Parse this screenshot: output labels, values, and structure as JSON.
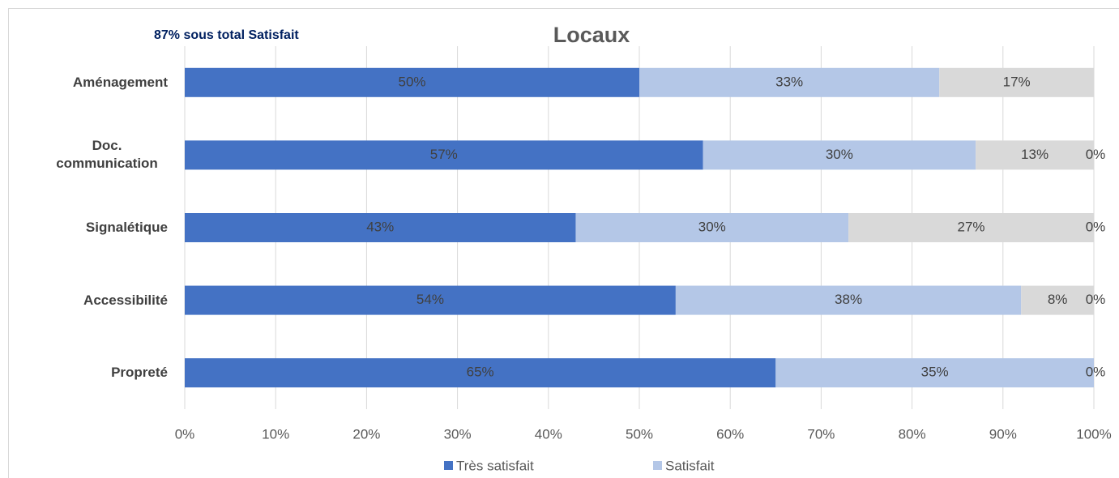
{
  "chart_data": {
    "type": "stacked_bar_horizontal",
    "title": "Locaux",
    "annotation": "87% sous total Satisfait",
    "categories": [
      "Aménagement",
      "Doc. communication",
      "Signalétique",
      "Accessibilité",
      "Propreté"
    ],
    "series": [
      {
        "name": "Très satisfait",
        "color": "#4472c4",
        "values": [
          50,
          57,
          43,
          54,
          65
        ],
        "value_labels": [
          "50%",
          "57%",
          "43%",
          "54%",
          "65%"
        ]
      },
      {
        "name": "Satisfait",
        "color": "#b4c7e7",
        "values": [
          33,
          30,
          30,
          38,
          35
        ],
        "value_labels": [
          "33%",
          "30%",
          "30%",
          "38%",
          "35%"
        ]
      },
      {
        "color": "#d9d9d9",
        "values": [
          17,
          13,
          27,
          8,
          null
        ],
        "value_labels": [
          "17%",
          "13%",
          "27%",
          "8%",
          null
        ]
      },
      {
        "color": "#7f7f7f",
        "values": [
          null,
          0,
          0,
          0,
          0
        ],
        "value_labels": [
          null,
          "0%",
          "0%",
          "0%",
          "0%"
        ]
      }
    ],
    "xlim": [
      0,
      100
    ],
    "xticks": [
      {
        "value": 0,
        "label": "0%"
      },
      {
        "value": 10,
        "label": "10%"
      },
      {
        "value": 20,
        "label": "20%"
      },
      {
        "value": 30,
        "label": "30%"
      },
      {
        "value": 40,
        "label": "40%"
      },
      {
        "value": 50,
        "label": "50%"
      },
      {
        "value": 60,
        "label": "60%"
      },
      {
        "value": 70,
        "label": "70%"
      },
      {
        "value": 80,
        "label": "80%"
      },
      {
        "value": 90,
        "label": "90%"
      },
      {
        "value": 100,
        "label": "100%"
      }
    ],
    "grid": true,
    "legend": "bottom"
  }
}
